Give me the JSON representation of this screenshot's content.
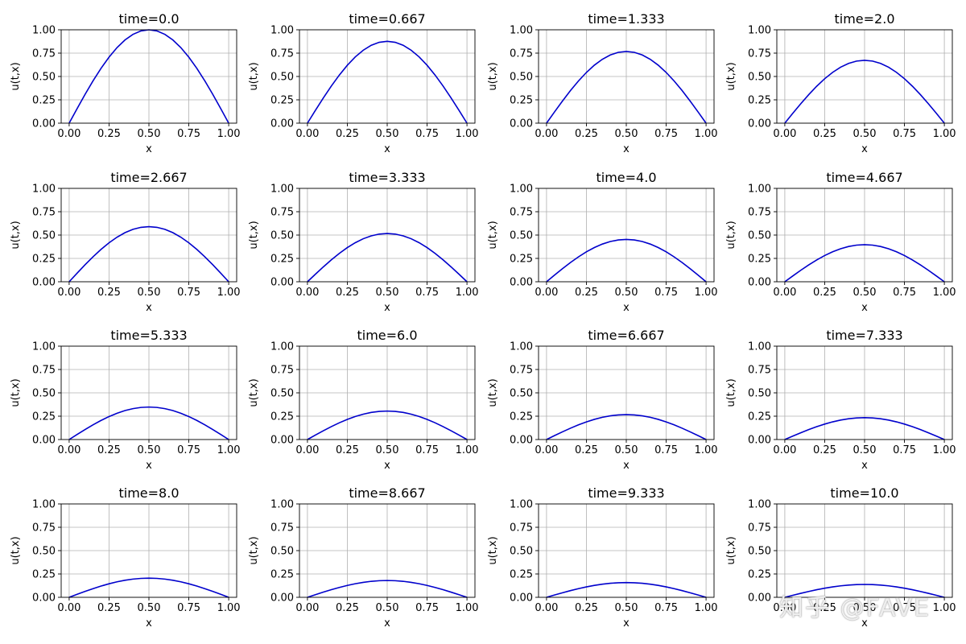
{
  "chart_data": {
    "type": "line",
    "layout": "4x4 grid of subplots",
    "shared": {
      "xlabel": "x",
      "ylabel": "u(t,x)",
      "xlim": [
        -0.05,
        1.05
      ],
      "ylim": [
        0,
        1
      ],
      "xticks": [
        "0.00",
        "0.25",
        "0.50",
        "0.75",
        "1.00"
      ],
      "yticks": [
        "0.00",
        "0.25",
        "0.50",
        "0.75",
        "1.00"
      ],
      "grid": true,
      "line_color": "#0000cc",
      "x": [
        0,
        0.05,
        0.1,
        0.15,
        0.2,
        0.25,
        0.3,
        0.35,
        0.4,
        0.45,
        0.5,
        0.55,
        0.6,
        0.65,
        0.7,
        0.75,
        0.8,
        0.85,
        0.9,
        0.95,
        1.0
      ],
      "curve_shape": "peak * sin(pi * x)"
    },
    "panels": [
      {
        "title": "time=0.0",
        "peak": 1.0
      },
      {
        "title": "time=0.667",
        "peak": 0.877
      },
      {
        "title": "time=1.333",
        "peak": 0.768
      },
      {
        "title": "time=2.0",
        "peak": 0.673
      },
      {
        "title": "time=2.667",
        "peak": 0.59
      },
      {
        "title": "time=3.333",
        "peak": 0.517
      },
      {
        "title": "time=4.0",
        "peak": 0.453
      },
      {
        "title": "time=4.667",
        "peak": 0.397
      },
      {
        "title": "time=5.333",
        "peak": 0.348
      },
      {
        "title": "time=6.0",
        "peak": 0.305
      },
      {
        "title": "time=6.667",
        "peak": 0.267
      },
      {
        "title": "time=7.333",
        "peak": 0.234
      },
      {
        "title": "time=8.0",
        "peak": 0.205
      },
      {
        "title": "time=8.667",
        "peak": 0.18
      },
      {
        "title": "time=9.333",
        "peak": 0.158
      },
      {
        "title": "time=10.0",
        "peak": 0.138
      }
    ]
  },
  "watermark": "知乎 @FAVE"
}
